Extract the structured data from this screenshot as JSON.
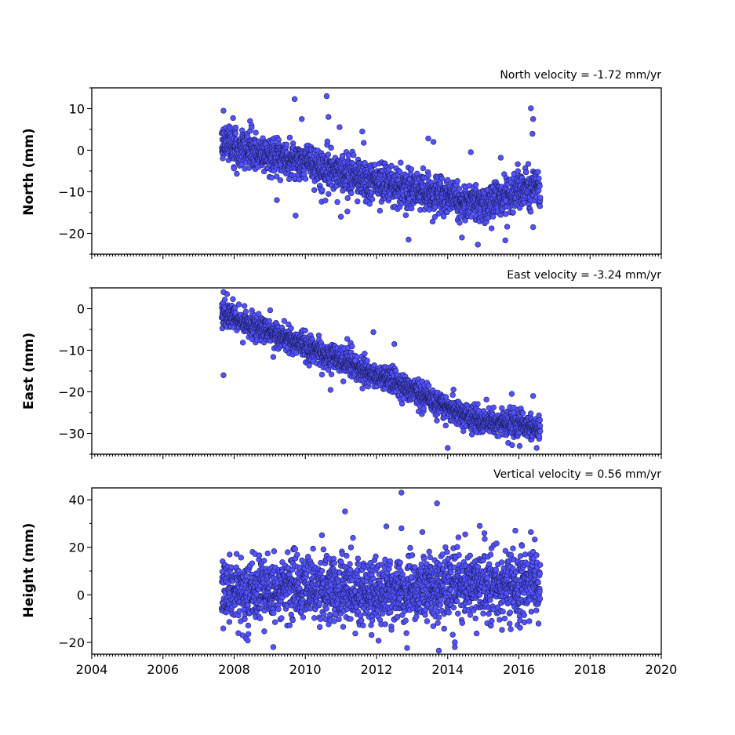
{
  "chart_data": [
    {
      "type": "scatter",
      "annotation": "North velocity = -1.72 mm/yr",
      "ylabel": "North (mm)",
      "xlim": [
        2004,
        2020
      ],
      "ylim": [
        -25,
        15
      ],
      "yticks": [
        10,
        0,
        -10,
        -20
      ],
      "x_start": 2007.65,
      "x_end": 2016.6,
      "velocity_mm_per_yr": -1.72,
      "model": {
        "knots_x": [
          2007.65,
          2009.0,
          2010.0,
          2011.0,
          2012.0,
          2013.0,
          2014.0,
          2015.0,
          2016.0,
          2016.6
        ],
        "knots_y": [
          2.0,
          -1.5,
          -3.0,
          -5.5,
          -7.5,
          -10.0,
          -11.5,
          -13.0,
          -10.0,
          -9.0
        ]
      },
      "scatter_sd": 2.2,
      "outliers": [
        {
          "x": 2007.7,
          "y": 9.5
        },
        {
          "x": 2009.7,
          "y": 12.3
        },
        {
          "x": 2010.6,
          "y": 13.0
        },
        {
          "x": 2010.65,
          "y": 8.0
        },
        {
          "x": 2009.9,
          "y": 7.5
        },
        {
          "x": 2011.0,
          "y": -16.0
        },
        {
          "x": 2012.9,
          "y": -21.5
        },
        {
          "x": 2013.6,
          "y": 2.0
        },
        {
          "x": 2014.4,
          "y": -21.0
        },
        {
          "x": 2016.4,
          "y": 7.5
        },
        {
          "x": 2016.4,
          "y": -18.5
        },
        {
          "x": 2011.6,
          "y": 4.5
        },
        {
          "x": 2009.2,
          "y": -12.0
        }
      ]
    },
    {
      "type": "scatter",
      "annotation": "East velocity = -3.24 mm/yr",
      "ylabel": "East (mm)",
      "xlim": [
        2004,
        2020
      ],
      "ylim": [
        -35,
        5
      ],
      "yticks": [
        0,
        -10,
        -20,
        -30
      ],
      "x_start": 2007.65,
      "x_end": 2016.6,
      "velocity_mm_per_yr": -3.24,
      "model": {
        "knots_x": [
          2007.65,
          2008.5,
          2010.0,
          2011.0,
          2012.0,
          2013.0,
          2014.0,
          2015.0,
          2016.0,
          2016.6
        ],
        "knots_y": [
          -1.0,
          -4.0,
          -9.0,
          -12.5,
          -16.0,
          -19.5,
          -24.0,
          -27.0,
          -28.0,
          -29.0
        ]
      },
      "scatter_sd": 1.4,
      "outliers": [
        {
          "x": 2007.7,
          "y": 4.0
        },
        {
          "x": 2007.8,
          "y": 3.5
        },
        {
          "x": 2007.7,
          "y": -16.0
        },
        {
          "x": 2014.0,
          "y": -33.5
        },
        {
          "x": 2016.5,
          "y": -33.5
        },
        {
          "x": 2012.5,
          "y": -8.5
        },
        {
          "x": 2011.4,
          "y": -12.5
        },
        {
          "x": 2015.8,
          "y": -20.5
        },
        {
          "x": 2016.4,
          "y": -21.0
        }
      ]
    },
    {
      "type": "scatter",
      "annotation": "Vertical velocity = 0.56 mm/yr",
      "ylabel": "Height (mm)",
      "xlim": [
        2004,
        2020
      ],
      "ylim": [
        -25,
        45
      ],
      "yticks": [
        40,
        20,
        0,
        -20
      ],
      "xticks": [
        2004,
        2006,
        2008,
        2010,
        2012,
        2014,
        2016,
        2018,
        2020
      ],
      "x_start": 2007.65,
      "x_end": 2016.6,
      "velocity_mm_per_yr": 0.56,
      "model": {
        "knots_x": [
          2007.65,
          2010.0,
          2012.0,
          2014.0,
          2016.6
        ],
        "knots_y": [
          1.5,
          3.0,
          1.0,
          4.0,
          5.0
        ]
      },
      "scatter_sd": 6.5,
      "outliers": [
        {
          "x": 2012.7,
          "y": 43.0
        },
        {
          "x": 2013.7,
          "y": 38.5
        },
        {
          "x": 2013.75,
          "y": -23.5
        },
        {
          "x": 2014.2,
          "y": -20.0
        },
        {
          "x": 2014.2,
          "y": -22.0
        },
        {
          "x": 2009.1,
          "y": -22.0
        },
        {
          "x": 2014.9,
          "y": 29.0
        },
        {
          "x": 2012.7,
          "y": 28.0
        },
        {
          "x": 2015.9,
          "y": 27.0
        }
      ]
    }
  ],
  "marker_color": "#5252ff",
  "marker_edge_color": "#1a1a55"
}
